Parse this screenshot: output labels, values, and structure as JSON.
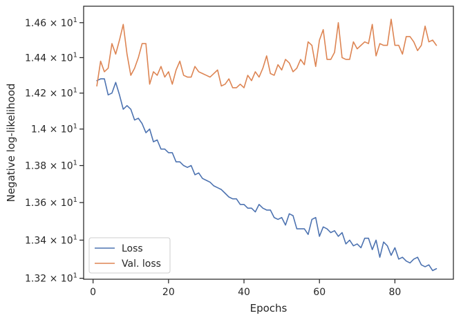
{
  "chart_data": {
    "type": "line",
    "xlabel": "Epochs",
    "ylabel": "Negative log-likelihood",
    "xlim": [
      -2.5,
      95.5
    ],
    "ylim": [
      13.195,
      14.695
    ],
    "y_scale": "log",
    "grid": false,
    "legend_position": "lower-left",
    "x_ticks": [
      0,
      20,
      40,
      60,
      80
    ],
    "x_tick_labels": [
      "0",
      "20",
      "40",
      "60",
      "80"
    ],
    "y_ticks": [
      13.2,
      13.4,
      13.6,
      13.8,
      14.0,
      14.2,
      14.4,
      14.6
    ],
    "y_tick_labels": [
      {
        "mantissa": "1.32",
        "base": "10",
        "exp": "1"
      },
      {
        "mantissa": "1.34",
        "base": "10",
        "exp": "1"
      },
      {
        "mantissa": "1.36",
        "base": "10",
        "exp": "1"
      },
      {
        "mantissa": "1.38",
        "base": "10",
        "exp": "1"
      },
      {
        "mantissa": "1.4",
        "base": "10",
        "exp": "1"
      },
      {
        "mantissa": "1.42",
        "base": "10",
        "exp": "1"
      },
      {
        "mantissa": "1.44",
        "base": "10",
        "exp": "1"
      },
      {
        "mantissa": "1.46",
        "base": "10",
        "exp": "1"
      }
    ],
    "x": [
      1,
      2,
      3,
      4,
      5,
      6,
      7,
      8,
      9,
      10,
      11,
      12,
      13,
      14,
      15,
      16,
      17,
      18,
      19,
      20,
      21,
      22,
      23,
      24,
      25,
      26,
      27,
      28,
      29,
      30,
      31,
      32,
      33,
      34,
      35,
      36,
      37,
      38,
      39,
      40,
      41,
      42,
      43,
      44,
      45,
      46,
      47,
      48,
      49,
      50,
      51,
      52,
      53,
      54,
      55,
      56,
      57,
      58,
      59,
      60,
      61,
      62,
      63,
      64,
      65,
      66,
      67,
      68,
      69,
      70,
      71,
      72,
      73,
      74,
      75,
      76,
      77,
      78,
      79,
      80,
      81,
      82,
      83,
      84,
      85,
      86,
      87,
      88,
      89,
      90,
      91
    ],
    "series": [
      {
        "name": "Loss",
        "color": "#4c72b0",
        "values": [
          14.27,
          14.28,
          14.28,
          14.19,
          14.2,
          14.26,
          14.19,
          14.11,
          14.13,
          14.11,
          14.05,
          14.06,
          14.03,
          13.98,
          14.0,
          13.93,
          13.94,
          13.89,
          13.89,
          13.87,
          13.87,
          13.82,
          13.82,
          13.8,
          13.79,
          13.8,
          13.75,
          13.76,
          13.73,
          13.72,
          13.71,
          13.69,
          13.68,
          13.67,
          13.65,
          13.63,
          13.62,
          13.62,
          13.59,
          13.59,
          13.57,
          13.57,
          13.55,
          13.59,
          13.57,
          13.56,
          13.56,
          13.52,
          13.51,
          13.52,
          13.48,
          13.54,
          13.53,
          13.46,
          13.46,
          13.46,
          13.43,
          13.51,
          13.52,
          13.42,
          13.47,
          13.46,
          13.44,
          13.45,
          13.42,
          13.44,
          13.38,
          13.4,
          13.37,
          13.38,
          13.36,
          13.41,
          13.41,
          13.35,
          13.4,
          13.31,
          13.39,
          13.37,
          13.32,
          13.36,
          13.3,
          13.31,
          13.29,
          13.28,
          13.3,
          13.31,
          13.27,
          13.26,
          13.27,
          13.24,
          13.25
        ]
      },
      {
        "name": "Val. loss",
        "color": "#dd8452",
        "values": [
          14.24,
          14.38,
          14.32,
          14.34,
          14.48,
          14.42,
          14.5,
          14.59,
          14.42,
          14.3,
          14.34,
          14.4,
          14.48,
          14.48,
          14.25,
          14.32,
          14.3,
          14.35,
          14.29,
          14.32,
          14.25,
          14.33,
          14.38,
          14.3,
          14.29,
          14.29,
          14.35,
          14.32,
          14.31,
          14.3,
          14.29,
          14.31,
          14.33,
          14.24,
          14.25,
          14.28,
          14.23,
          14.23,
          14.25,
          14.23,
          14.3,
          14.27,
          14.32,
          14.29,
          14.34,
          14.41,
          14.31,
          14.3,
          14.36,
          14.33,
          14.39,
          14.37,
          14.32,
          14.34,
          14.39,
          14.36,
          14.49,
          14.47,
          14.35,
          14.5,
          14.56,
          14.39,
          14.39,
          14.43,
          14.6,
          14.4,
          14.39,
          14.39,
          14.49,
          14.45,
          14.47,
          14.49,
          14.48,
          14.59,
          14.41,
          14.48,
          14.47,
          14.47,
          14.62,
          14.47,
          14.47,
          14.42,
          14.52,
          14.52,
          14.49,
          14.44,
          14.47,
          14.58,
          14.49,
          14.5,
          14.47
        ]
      }
    ]
  }
}
